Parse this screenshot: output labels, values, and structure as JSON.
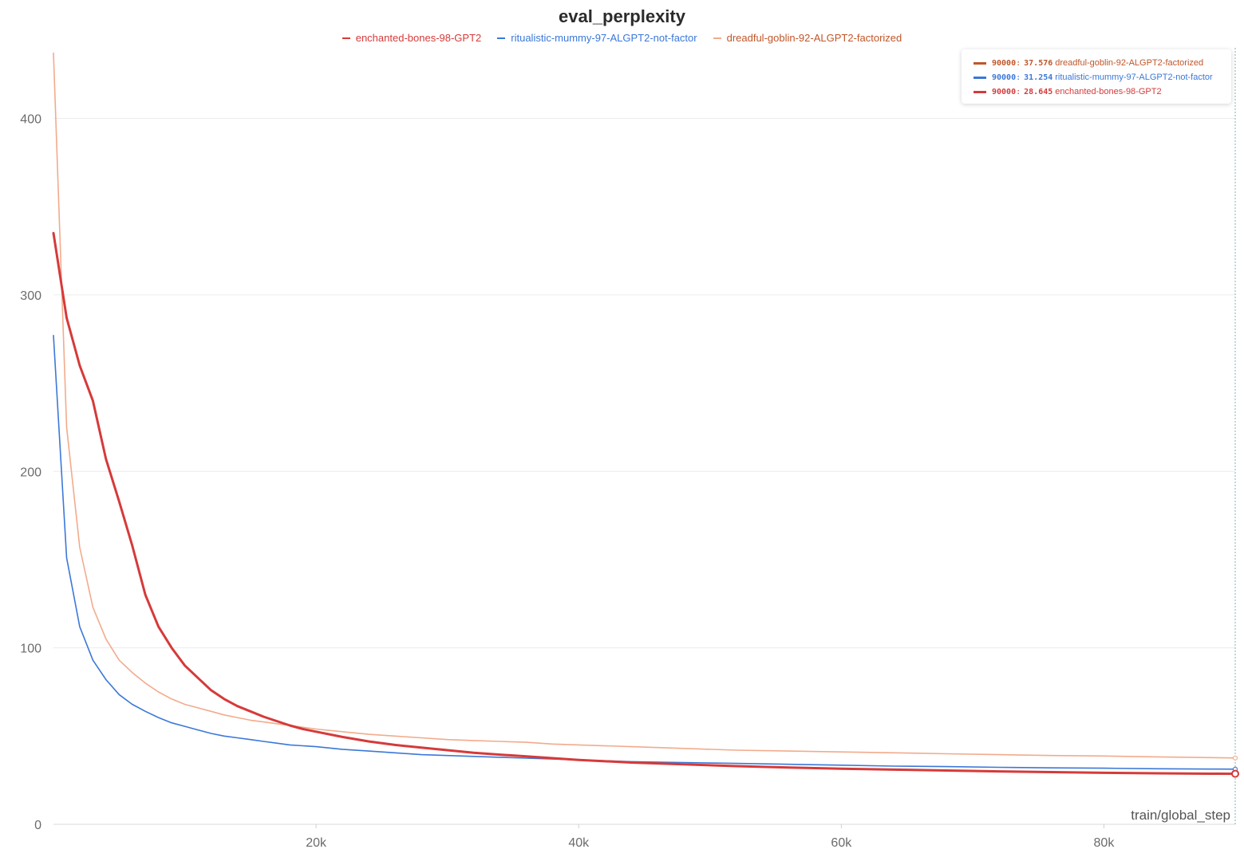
{
  "chart_data": {
    "type": "line",
    "title": "eval_perplexity",
    "xlabel": "train/global_step",
    "ylabel": "",
    "xlim": [
      0,
      90000
    ],
    "ylim": [
      0,
      440
    ],
    "x_ticks": [
      20000,
      40000,
      60000,
      80000
    ],
    "x_tick_labels": [
      "20k",
      "40k",
      "60k",
      "80k"
    ],
    "y_ticks": [
      0,
      100,
      200,
      300,
      400
    ],
    "y_tick_labels": [
      "0",
      "100",
      "200",
      "300",
      "400"
    ],
    "grid": "horizontal",
    "legend_position": "top",
    "series": [
      {
        "name": "enchanted-bones-98-GPT2",
        "color": "#d63a3a",
        "x": [
          0,
          1000,
          2000,
          3000,
          4000,
          5000,
          6000,
          7000,
          8000,
          9000,
          10000,
          11000,
          12000,
          13000,
          14000,
          15000,
          16000,
          17000,
          18000,
          19000,
          20000,
          22000,
          24000,
          26000,
          28000,
          30000,
          32000,
          34000,
          36000,
          38000,
          40000,
          44000,
          48000,
          52000,
          56000,
          60000,
          64000,
          68000,
          72000,
          76000,
          80000,
          84000,
          88000,
          90000
        ],
        "values": [
          335,
          287,
          260,
          240,
          207,
          183,
          158,
          130,
          112,
          100,
          90,
          83,
          76,
          71,
          67,
          64,
          61,
          58.5,
          56,
          54,
          52.5,
          49.5,
          47,
          45,
          43.5,
          42,
          40.5,
          39.5,
          38.5,
          37.5,
          36.5,
          35,
          34,
          33,
          32.2,
          31.5,
          31,
          30.5,
          30,
          29.6,
          29.2,
          28.9,
          28.7,
          28.645
        ]
      },
      {
        "name": "ritualistic-mummy-97-ALGPT2-not-factor",
        "color": "#3b78d8",
        "x": [
          0,
          1000,
          2000,
          3000,
          4000,
          5000,
          6000,
          7000,
          8000,
          9000,
          10000,
          11000,
          12000,
          13000,
          14000,
          15000,
          16000,
          17000,
          18000,
          19000,
          20000,
          22000,
          24000,
          26000,
          28000,
          30000,
          32000,
          34000,
          36000,
          38000,
          40000,
          44000,
          48000,
          52000,
          56000,
          60000,
          64000,
          68000,
          72000,
          76000,
          80000,
          84000,
          88000,
          90000
        ],
        "values": [
          277,
          151,
          112,
          93,
          82,
          73.5,
          68,
          64,
          60.5,
          57.5,
          55.5,
          53.5,
          51.5,
          50,
          49,
          48,
          47,
          46,
          45,
          44.5,
          44,
          42.5,
          41.5,
          40.5,
          39.5,
          39,
          38.5,
          38,
          37.5,
          37,
          36.5,
          35.5,
          35,
          34.5,
          34,
          33.5,
          33,
          32.7,
          32.3,
          32,
          31.8,
          31.5,
          31.3,
          31.254
        ]
      },
      {
        "name": "dreadful-goblin-92-ALGPT2-factorized",
        "color": "#f2ab8c",
        "x": [
          0,
          1000,
          2000,
          3000,
          4000,
          5000,
          6000,
          7000,
          8000,
          9000,
          10000,
          11000,
          12000,
          13000,
          14000,
          15000,
          16000,
          17000,
          18000,
          19000,
          20000,
          22000,
          24000,
          26000,
          28000,
          30000,
          32000,
          34000,
          36000,
          38000,
          40000,
          44000,
          48000,
          52000,
          56000,
          60000,
          64000,
          68000,
          72000,
          76000,
          80000,
          84000,
          88000,
          90000
        ],
        "values": [
          437,
          225,
          157,
          123,
          105,
          93,
          86,
          80,
          75,
          71,
          68,
          66,
          64,
          62,
          60.5,
          59,
          58,
          57,
          56,
          55,
          54,
          52.5,
          51,
          50,
          49,
          48,
          47.5,
          47,
          46.5,
          45.5,
          45,
          44,
          43,
          42,
          41.5,
          41,
          40.5,
          40,
          39.5,
          39,
          38.7,
          38.2,
          37.8,
          37.576
        ]
      }
    ]
  },
  "tooltip": {
    "rows": [
      {
        "step": "90000",
        "value": "37.576",
        "name": "dreadful-goblin-92-ALGPT2-factorized",
        "color": "#c0562a"
      },
      {
        "step": "90000",
        "value": "31.254",
        "name": "ritualistic-mummy-97-ALGPT2-not-factor",
        "color": "#3b78d8"
      },
      {
        "step": "90000",
        "value": "28.645",
        "name": "enchanted-bones-98-GPT2",
        "color": "#d63a3a"
      }
    ]
  }
}
